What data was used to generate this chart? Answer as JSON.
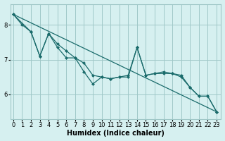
{
  "xlabel": "Humidex (Indice chaleur)",
  "bg_color": "#d6f0f0",
  "grid_color": "#a0c8c8",
  "line_color": "#1a6b6b",
  "series1": {
    "x": [
      0,
      1,
      2,
      3,
      4,
      5,
      6,
      7,
      8,
      9,
      10,
      11,
      12,
      13,
      14,
      15,
      16,
      17,
      18,
      19,
      20,
      21,
      22,
      23
    ],
    "y": [
      8.3,
      8.0,
      7.8,
      7.1,
      7.75,
      7.35,
      7.05,
      7.05,
      6.65,
      6.3,
      6.5,
      6.45,
      6.5,
      6.5,
      7.35,
      6.55,
      6.6,
      6.6,
      6.6,
      6.5,
      6.2,
      5.95,
      5.95,
      5.5
    ]
  },
  "series2": {
    "x": [
      0,
      2,
      3,
      4,
      5,
      6,
      7,
      8,
      9,
      10,
      11,
      12,
      13,
      14,
      15,
      16,
      17,
      18,
      19,
      20,
      21,
      22,
      23
    ],
    "y": [
      8.3,
      7.8,
      7.1,
      7.75,
      7.45,
      7.25,
      7.05,
      6.9,
      6.55,
      6.5,
      6.45,
      6.5,
      6.55,
      7.35,
      6.55,
      6.6,
      6.65,
      6.6,
      6.55,
      6.2,
      5.95,
      5.95,
      5.5
    ]
  },
  "trend": {
    "x": [
      0,
      23
    ],
    "y": [
      8.3,
      5.5
    ]
  },
  "xticks": [
    0,
    1,
    2,
    3,
    4,
    5,
    6,
    7,
    8,
    9,
    10,
    11,
    12,
    13,
    14,
    15,
    16,
    17,
    18,
    19,
    20,
    21,
    22,
    23
  ],
  "yticks": [
    6,
    7,
    8
  ],
  "xlim": [
    -0.3,
    23.5
  ],
  "ylim": [
    5.3,
    8.6
  ],
  "tick_fontsize": 6,
  "label_fontsize": 7
}
